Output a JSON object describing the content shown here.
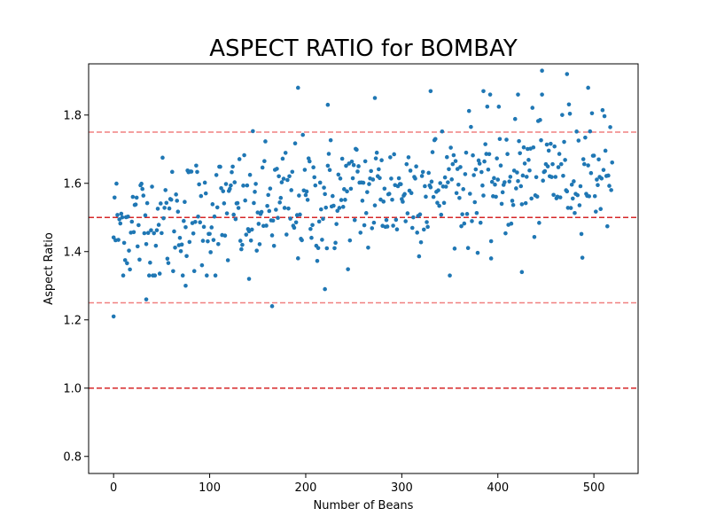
{
  "chart_data": {
    "type": "scatter",
    "title": "ASPECT RATIO for BOMBAY",
    "xlabel": "Number of Beans",
    "ylabel": "Aspect Ratio",
    "xlim": [
      -26,
      546
    ],
    "ylim": [
      0.75,
      1.95
    ],
    "x_ticks": [
      0,
      100,
      200,
      300,
      400,
      500
    ],
    "y_ticks": [
      0.8,
      1.0,
      1.2,
      1.4,
      1.6,
      1.8
    ],
    "x_tick_labels": [
      "0",
      "100",
      "200",
      "300",
      "400",
      "500"
    ],
    "y_tick_labels": [
      "0.8",
      "1.0",
      "1.2",
      "1.4",
      "1.6",
      "1.8"
    ],
    "grid": false,
    "point_color": "#1f77b4",
    "reference_lines": [
      {
        "y": 1.75,
        "color": "#f08080",
        "style": "dashed"
      },
      {
        "y": 1.5,
        "color": "#d62728",
        "style": "dashed"
      },
      {
        "y": 1.25,
        "color": "#f08080",
        "style": "dashed"
      },
      {
        "y": 1.0,
        "color": "#d62728",
        "style": "dashed"
      }
    ],
    "series": [
      {
        "n": 520,
        "x_start": 0,
        "outliers": [
          {
            "x": 0,
            "y": 1.21
          },
          {
            "x": 34,
            "y": 1.26
          },
          {
            "x": 75,
            "y": 1.3
          },
          {
            "x": 141,
            "y": 1.32
          },
          {
            "x": 165,
            "y": 1.24
          },
          {
            "x": 220,
            "y": 1.29
          },
          {
            "x": 192,
            "y": 1.88
          },
          {
            "x": 223,
            "y": 1.83
          },
          {
            "x": 272,
            "y": 1.85
          },
          {
            "x": 330,
            "y": 1.87
          },
          {
            "x": 385,
            "y": 1.87
          },
          {
            "x": 421,
            "y": 1.86
          },
          {
            "x": 446,
            "y": 1.93
          },
          {
            "x": 472,
            "y": 1.92
          },
          {
            "x": 494,
            "y": 1.88
          },
          {
            "x": 425,
            "y": 1.34
          },
          {
            "x": 393,
            "y": 1.38
          }
        ]
      }
    ]
  }
}
